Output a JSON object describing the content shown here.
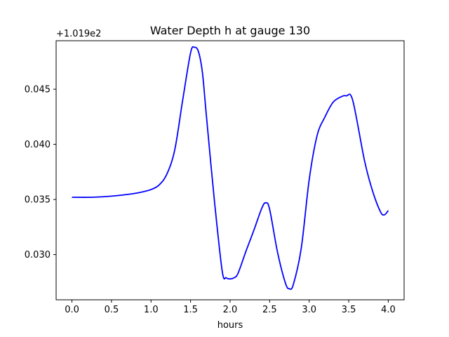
{
  "chart_data": {
    "type": "line",
    "title": "Water Depth h at gauge 130",
    "xlabel": "hours",
    "ylabel": "",
    "y_offset_label": "+1.019e2",
    "xlim": [
      -0.2,
      4.2
    ],
    "ylim": [
      0.0259,
      0.0494
    ],
    "xticks": [
      0.0,
      0.5,
      1.0,
      1.5,
      2.0,
      2.5,
      3.0,
      3.5,
      4.0
    ],
    "xtick_labels": [
      "0.0",
      "0.5",
      "1.0",
      "1.5",
      "2.0",
      "2.5",
      "3.0",
      "3.5",
      "4.0"
    ],
    "yticks": [
      0.03,
      0.035,
      0.04,
      0.045
    ],
    "ytick_labels": [
      "0.030",
      "0.035",
      "0.040",
      "0.045"
    ],
    "grid": false,
    "series": [
      {
        "color": "#0000ff",
        "x": [
          0.0,
          0.25,
          0.5,
          0.75,
          0.9,
          1.0,
          1.1,
          1.2,
          1.3,
          1.4,
          1.5,
          1.55,
          1.6,
          1.65,
          1.7,
          1.8,
          1.9,
          1.95,
          2.0,
          2.05,
          2.1,
          2.2,
          2.3,
          2.4,
          2.45,
          2.5,
          2.6,
          2.7,
          2.75,
          2.8,
          2.9,
          3.0,
          3.1,
          3.2,
          3.3,
          3.4,
          3.47,
          3.55,
          3.7,
          3.8,
          3.9,
          3.95,
          4.0
        ],
        "y": [
          0.0352,
          0.0352,
          0.0353,
          0.0355,
          0.0357,
          0.0359,
          0.0363,
          0.0373,
          0.0395,
          0.044,
          0.0483,
          0.0488,
          0.0484,
          0.0465,
          0.0426,
          0.035,
          0.0285,
          0.0279,
          0.0278,
          0.0279,
          0.0283,
          0.0303,
          0.0322,
          0.0342,
          0.0347,
          0.0341,
          0.0302,
          0.0274,
          0.0269,
          0.0273,
          0.0306,
          0.0368,
          0.0408,
          0.0425,
          0.0438,
          0.0443,
          0.0444,
          0.044,
          0.0385,
          0.0358,
          0.0339,
          0.0336,
          0.034
        ]
      }
    ]
  }
}
